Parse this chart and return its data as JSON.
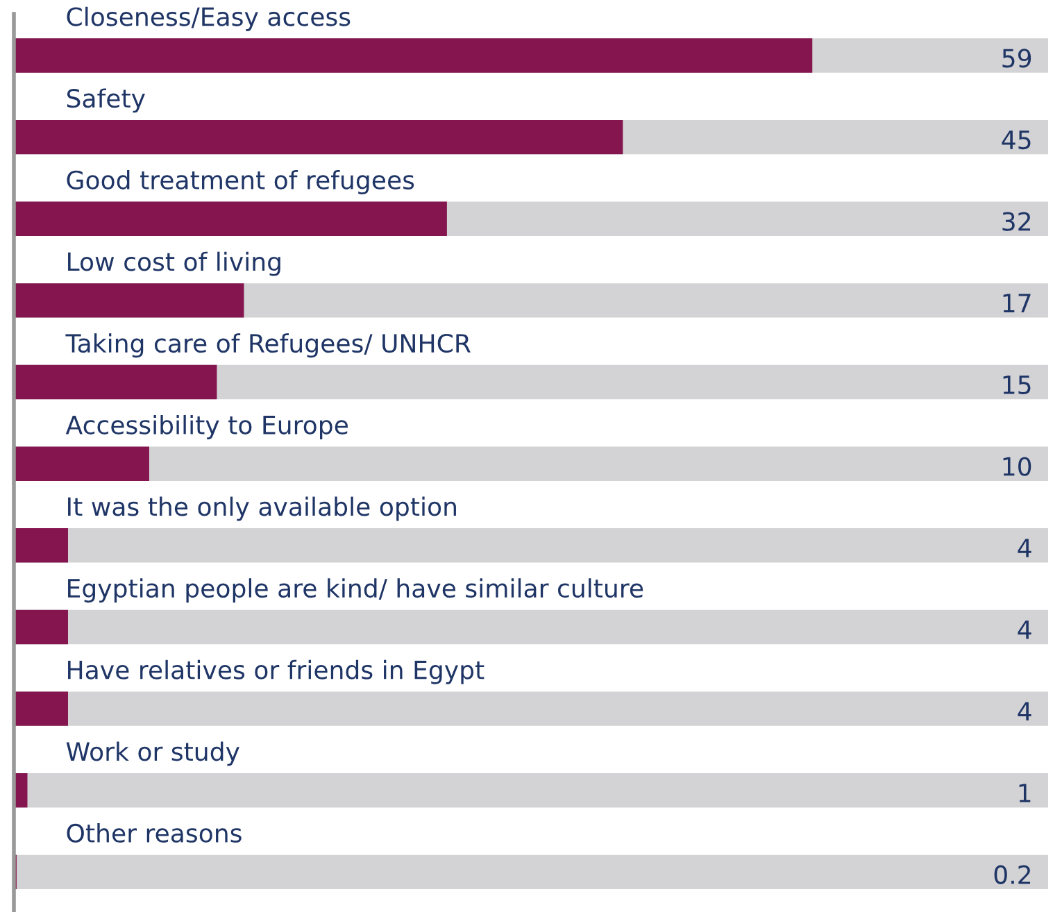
{
  "chart_data": {
    "type": "bar",
    "orientation": "horizontal",
    "categories": [
      "Closeness/Easy access",
      "Safety",
      "Good treatment of refugees",
      "Low cost of living",
      "Taking care of Refugees/ UNHCR",
      "Accessibility to Europe",
      "It was the only available option",
      "Egyptian people are kind/ have similar culture",
      "Have relatives or friends in Egypt",
      "Work or study",
      "Other reasons"
    ],
    "values": [
      59,
      45,
      32,
      17,
      15,
      10,
      4,
      4,
      4,
      1,
      0.2
    ],
    "color": "#85154f",
    "data_labels": true
  }
}
